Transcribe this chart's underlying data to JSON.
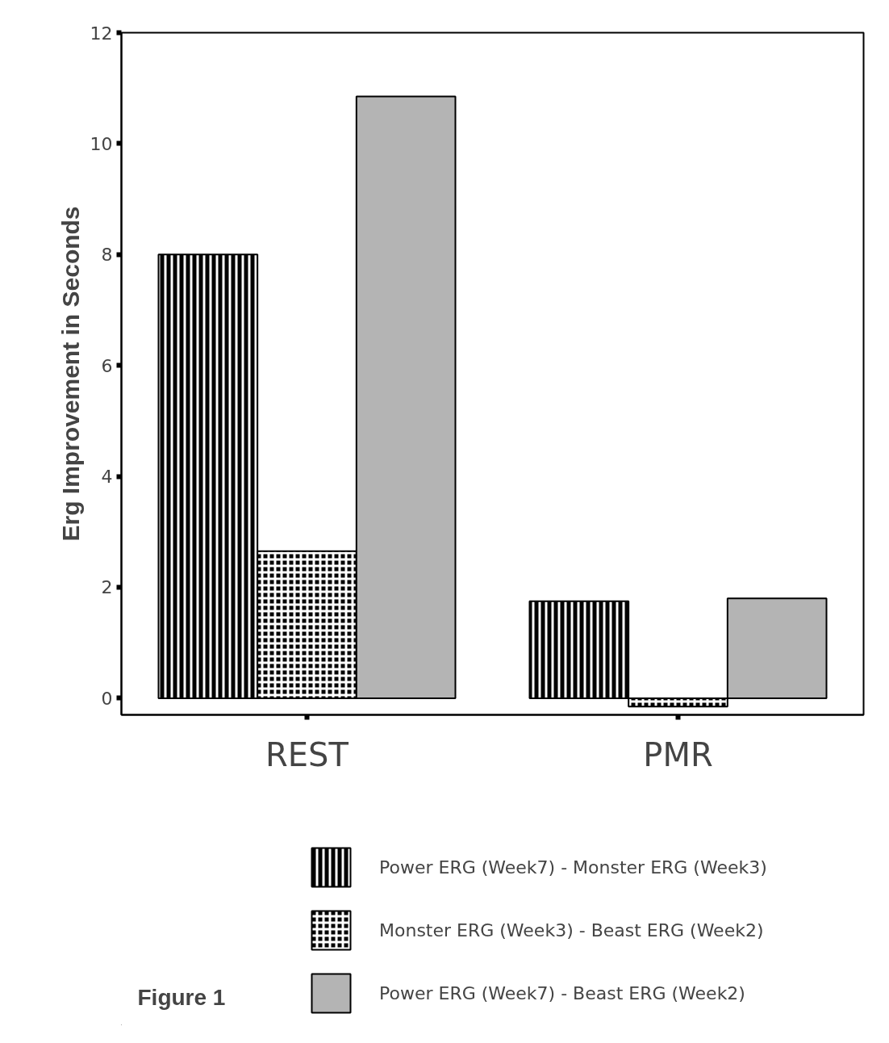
{
  "chart_data": {
    "type": "bar",
    "ylabel": "Erg Improvement in Seconds",
    "categories": [
      "REST",
      "PMR"
    ],
    "series": [
      {
        "name": "Power ERG (Week7) - Monster ERG (Week3)",
        "color": "#000000",
        "values": [
          8.0,
          1.75
        ]
      },
      {
        "name": "Monster ERG (Week3) - Beast ERG (Week2)",
        "color": "#000000",
        "values": [
          2.65,
          -0.15
        ]
      },
      {
        "name": "Power ERG (Week7) - Beast ERG (Week2)",
        "color": "#b4b4b4",
        "values": [
          10.85,
          1.8
        ]
      }
    ],
    "ylim": [
      -0.3,
      12
    ],
    "yticks": [
      0,
      2,
      4,
      6,
      8,
      10,
      12
    ],
    "grid": false,
    "legend": "bottom",
    "annotations": [
      "Figure 1"
    ]
  }
}
